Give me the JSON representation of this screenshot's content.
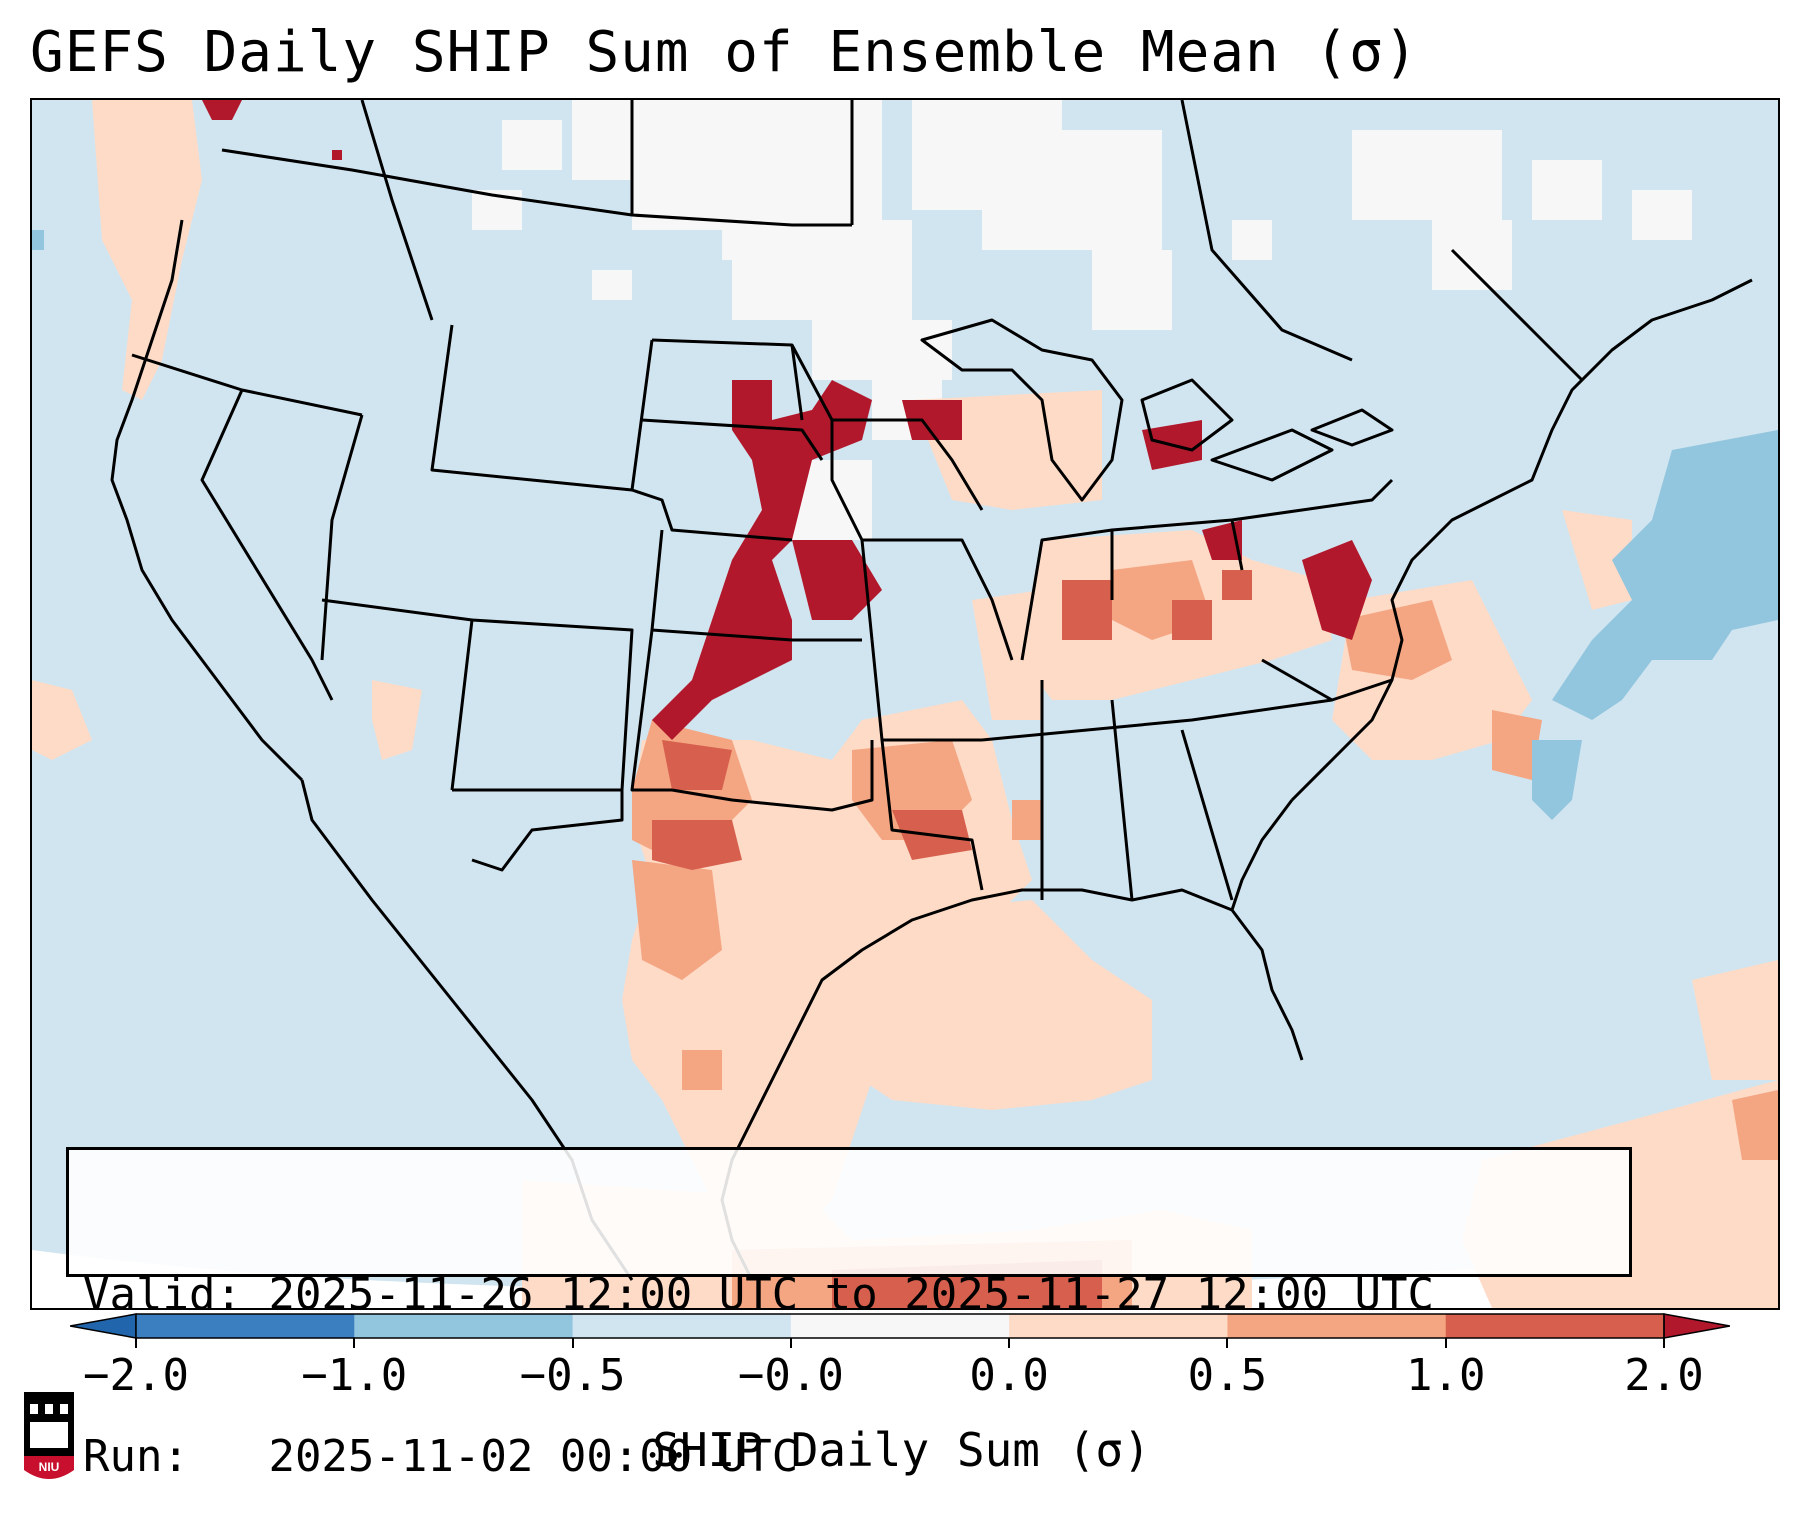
{
  "title": "GEFS Daily SHIP Sum of Ensemble Mean (σ)",
  "info": {
    "valid_label": "Valid:",
    "valid_value": "2025-11-26 12:00 UTC to 2025-11-27 12:00 UTC",
    "run_label": "Run:",
    "run_value": "2025-11-02 00:00 UTC"
  },
  "colorbar": {
    "label": "SHIP Daily Sum (σ)",
    "ticks": [
      "−2.0",
      "−1.0",
      "−0.5",
      "−0.0",
      "0.0",
      "0.5",
      "1.0",
      "2.0"
    ],
    "colors": [
      "#3b7fc0",
      "#92c5de",
      "#d1e5f0",
      "#f7f7f7",
      "#fddbc7",
      "#f4a582",
      "#d6604d",
      "#b2182b"
    ],
    "extend": "both"
  },
  "logo": {
    "text": "NIU"
  }
}
